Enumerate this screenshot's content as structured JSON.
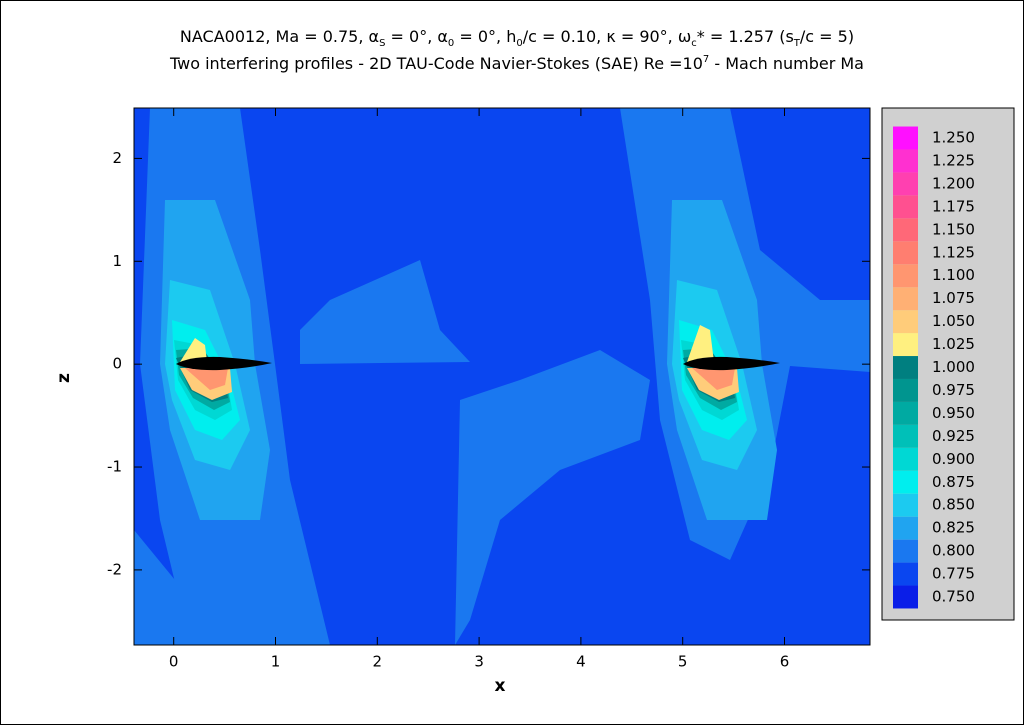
{
  "chart_data": {
    "type": "contour",
    "title": [
      {
        "text": "NACA0012, Ma = 0.75, α"
      },
      {
        "text": "S",
        "sub": true
      },
      {
        "text": " = 0°, α"
      },
      {
        "text": "0",
        "sub": true
      },
      {
        "text": " = 0°,  h"
      },
      {
        "text": "0",
        "sub": true
      },
      {
        "text": "/c = 0.10,  κ = 90°, ω"
      },
      {
        "text": "c",
        "sub": true
      },
      {
        "text": "* = 1.257 (s"
      },
      {
        "text": "T",
        "sub": true
      },
      {
        "text": "/c = 5)"
      }
    ],
    "subtitle": [
      {
        "text": "Two interfering profiles - 2D TAU-Code Navier-Stokes (SAE) Re =10"
      },
      {
        "text": "7",
        "sup": true
      },
      {
        "text": " - Mach number Ma"
      }
    ],
    "x_label": "x",
    "y_label": "z",
    "xlim": [
      -0.39,
      6.84
    ],
    "ylim": [
      -2.73,
      2.49
    ],
    "xticks": [
      0,
      1,
      2,
      3,
      4,
      5,
      6
    ],
    "yticks": [
      -2,
      -1,
      0,
      1,
      2
    ],
    "levels": [
      {
        "value": 0.75,
        "label": "0.750",
        "color": "#0a1ee8"
      },
      {
        "value": 0.775,
        "label": "0.775",
        "color": "#0a46f0"
      },
      {
        "value": 0.8,
        "label": "0.800",
        "color": "#1a78f0"
      },
      {
        "value": 0.825,
        "label": "0.825",
        "color": "#20a4f0"
      },
      {
        "value": 0.85,
        "label": "0.850",
        "color": "#1ccaf0"
      },
      {
        "value": 0.875,
        "label": "0.875",
        "color": "#00eeee"
      },
      {
        "value": 0.9,
        "label": "0.900",
        "color": "#00d8d4"
      },
      {
        "value": 0.925,
        "label": "0.925",
        "color": "#00c0b8"
      },
      {
        "value": 0.95,
        "label": "0.950",
        "color": "#00aaa2"
      },
      {
        "value": 0.975,
        "label": "0.975",
        "color": "#00958f"
      },
      {
        "value": 1.0,
        "label": "1.000",
        "color": "#007f80"
      },
      {
        "value": 1.025,
        "label": "1.025",
        "color": "#fff080"
      },
      {
        "value": 1.05,
        "label": "1.050",
        "color": "#ffcc7a"
      },
      {
        "value": 1.075,
        "label": "1.075",
        "color": "#ffb074"
      },
      {
        "value": 1.1,
        "label": "1.100",
        "color": "#ff9670"
      },
      {
        "value": 1.125,
        "label": "1.125",
        "color": "#ff7e70"
      },
      {
        "value": 1.15,
        "label": "1.150",
        "color": "#ff6878"
      },
      {
        "value": 1.175,
        "label": "1.175",
        "color": "#ff5090"
      },
      {
        "value": 1.2,
        "label": "1.200",
        "color": "#ff40b0"
      },
      {
        "value": 1.225,
        "label": "1.225",
        "color": "#ff30d0"
      },
      {
        "value": 1.25,
        "label": "1.250",
        "color": "#ff10ff"
      }
    ]
  }
}
